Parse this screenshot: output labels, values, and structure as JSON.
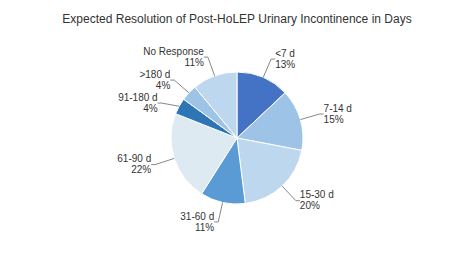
{
  "chart_data": {
    "type": "pie",
    "title": "Expected Resolution of Post-HoLEP Urinary Incontinence in Days",
    "categories": [
      "<7 d",
      "7-14 d",
      "15-30 d",
      "31-60 d",
      "61-90 d",
      "91-180 d",
      ">180 d",
      "No Response"
    ],
    "values": [
      13,
      15,
      20,
      11,
      22,
      4,
      4,
      11
    ],
    "value_labels": [
      "13%",
      "15%",
      "20%",
      "11%",
      "22%",
      "4%",
      "4%",
      "11%"
    ],
    "colors": [
      "#4472C4",
      "#9DC3E6",
      "#BDD7EE",
      "#5B9BD5",
      "#DEEAF1",
      "#2E75B6",
      "#9DC3E6",
      "#BDD7EE"
    ],
    "data_labels": true
  }
}
